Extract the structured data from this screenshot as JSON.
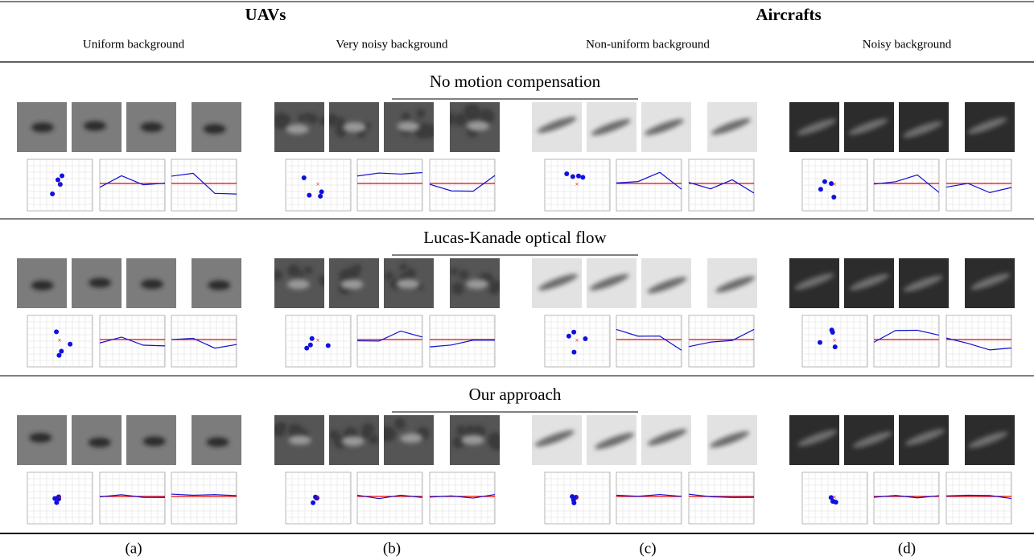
{
  "header": {
    "groups": [
      {
        "title": "UAVs",
        "columns": [
          "Uniform background",
          "Very noisy background"
        ]
      },
      {
        "title": "Aircrafts",
        "columns": [
          "Non-uniform background",
          "Noisy background"
        ]
      }
    ]
  },
  "sections": [
    {
      "title": "No motion compensation"
    },
    {
      "title": "Lucas-Kanade optical flow"
    },
    {
      "title": "Our approach"
    }
  ],
  "footer": {
    "labels": [
      "(a)",
      "(b)",
      "(c)",
      "(d)"
    ]
  }
}
